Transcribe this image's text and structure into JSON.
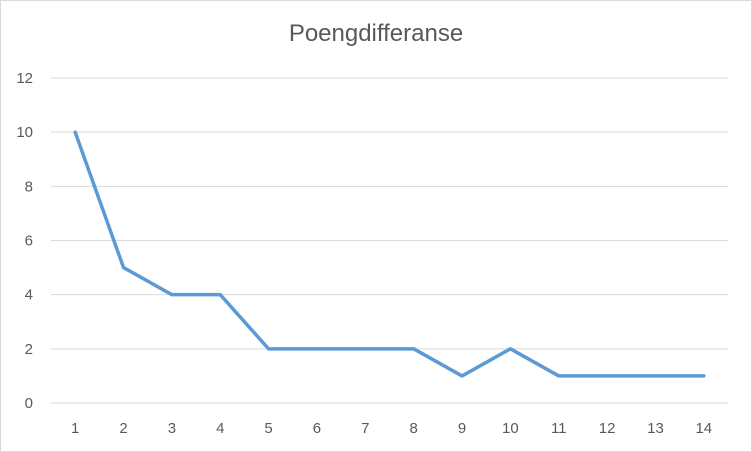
{
  "chart_data": {
    "type": "line",
    "title": "Poengdifferanse",
    "xlabel": "",
    "ylabel": "",
    "categories": [
      "1",
      "2",
      "3",
      "4",
      "5",
      "6",
      "7",
      "8",
      "9",
      "10",
      "11",
      "12",
      "13",
      "14"
    ],
    "series": [
      {
        "values": [
          10,
          5,
          4,
          4,
          2,
          2,
          2,
          2,
          1,
          2,
          1,
          1,
          1,
          1
        ]
      }
    ],
    "ylim": [
      0,
      12
    ],
    "yticks": [
      "0",
      "2",
      "4",
      "6",
      "8",
      "10",
      "12"
    ],
    "grid": true,
    "legend": "none",
    "colors": {
      "line": "#5b9bd5",
      "grid": "#d9d9d9",
      "axis": "#d9d9d9",
      "text": "#595959"
    }
  }
}
